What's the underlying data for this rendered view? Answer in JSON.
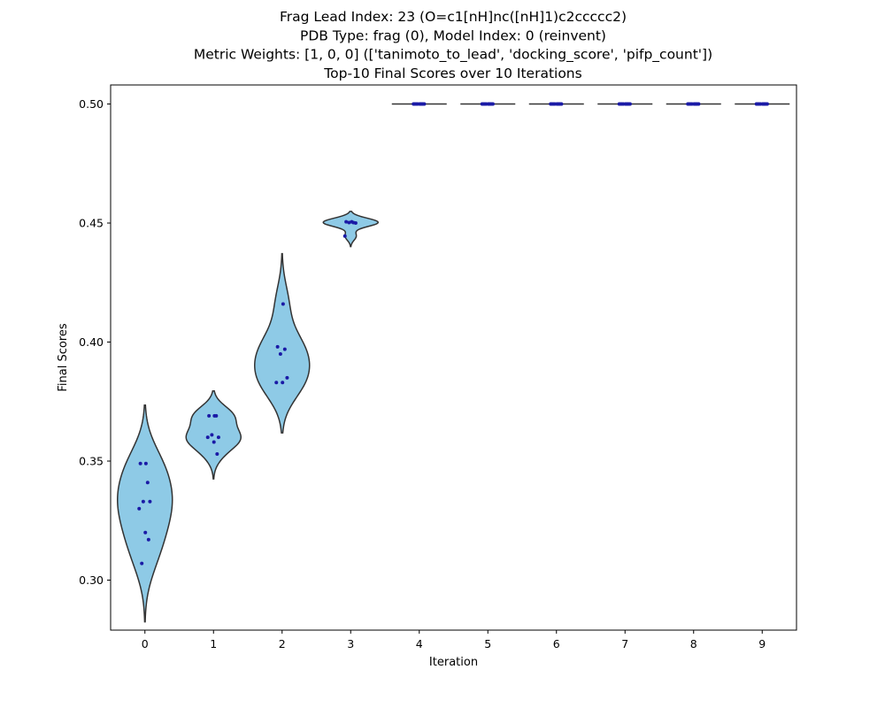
{
  "chart_data": {
    "type": "violin",
    "title_lines": [
      "Frag Lead Index: 23 (O=c1[nH]nc([nH]1)c2ccccc2)",
      "PDB Type: frag (0), Model Index: 0 (reinvent)",
      "Metric Weights: [1, 0, 0] (['tanimoto_to_lead', 'docking_score', 'pifp_count'])",
      "Top-10 Final Scores over 10 Iterations"
    ],
    "xlabel": "Iteration",
    "ylabel": "Final Scores",
    "categories": [
      "0",
      "1",
      "2",
      "3",
      "4",
      "5",
      "6",
      "7",
      "8",
      "9"
    ],
    "ylim": [
      0.279,
      0.508
    ],
    "yticks": [
      0.3,
      0.35,
      0.4,
      0.45,
      0.5
    ],
    "ytick_labels": [
      "0.30",
      "0.35",
      "0.40",
      "0.45",
      "0.50"
    ],
    "violin_color": "#8ecae6",
    "point_color": "#1a1aa6",
    "series": [
      {
        "values": [
          0.349,
          0.349,
          0.341,
          0.333,
          0.333,
          0.33,
          0.32,
          0.317,
          0.307
        ]
      },
      {
        "values": [
          0.369,
          0.369,
          0.369,
          0.361,
          0.36,
          0.36,
          0.358,
          0.353
        ]
      },
      {
        "values": [
          0.416,
          0.398,
          0.397,
          0.395,
          0.385,
          0.383,
          0.383
        ]
      },
      {
        "values": [
          0.4505,
          0.4505,
          0.4502,
          0.4502,
          0.45,
          0.4445
        ]
      },
      {
        "values": [
          0.5,
          0.5,
          0.5,
          0.5,
          0.5,
          0.5,
          0.5,
          0.5,
          0.5,
          0.5
        ]
      },
      {
        "values": [
          0.5,
          0.5,
          0.5,
          0.5,
          0.5,
          0.5,
          0.5,
          0.5,
          0.5,
          0.5
        ]
      },
      {
        "values": [
          0.5,
          0.5,
          0.5,
          0.5,
          0.5,
          0.5,
          0.5,
          0.5,
          0.5,
          0.5
        ]
      },
      {
        "values": [
          0.5,
          0.5,
          0.5,
          0.5,
          0.5,
          0.5,
          0.5,
          0.5,
          0.5,
          0.5
        ]
      },
      {
        "values": [
          0.5,
          0.5,
          0.5,
          0.5,
          0.5,
          0.5,
          0.5,
          0.5,
          0.5,
          0.5
        ]
      },
      {
        "values": [
          0.5,
          0.5,
          0.5,
          0.5,
          0.5,
          0.5,
          0.5,
          0.5,
          0.5,
          0.5
        ]
      }
    ]
  }
}
